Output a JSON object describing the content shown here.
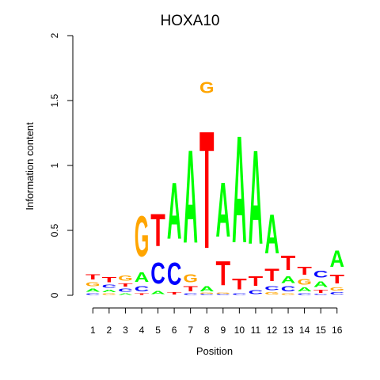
{
  "chart_data": {
    "type": "sequence-logo",
    "title": "HOXA10",
    "xlabel": "Position",
    "ylabel": "Information content",
    "ylim": [
      0,
      2
    ],
    "yticks": [
      "0",
      "0.5",
      "1",
      "1.5",
      "2"
    ],
    "positions": [
      "1",
      "2",
      "3",
      "4",
      "5",
      "6",
      "7",
      "8",
      "9",
      "10",
      "11",
      "12",
      "13",
      "14",
      "15",
      "16"
    ],
    "colors": {
      "A": "#00ff00",
      "C": "#0000ff",
      "G": "#ffa500",
      "T": "#ff0000"
    },
    "letter_stacks": [
      [
        [
          "C",
          0.02
        ],
        [
          "A",
          0.04
        ],
        [
          "G",
          0.05
        ],
        [
          "T",
          0.06
        ]
      ],
      [
        [
          "G",
          0.02
        ],
        [
          "A",
          0.03
        ],
        [
          "C",
          0.04
        ],
        [
          "T",
          0.06
        ]
      ],
      [
        [
          "A",
          0.02
        ],
        [
          "C",
          0.04
        ],
        [
          "T",
          0.04
        ],
        [
          "G",
          0.06
        ]
      ],
      [
        [
          "T",
          0.02
        ],
        [
          "C",
          0.06
        ],
        [
          "A",
          0.12
        ],
        [
          "G",
          0.5
        ]
      ],
      [
        [
          "A",
          0.04
        ],
        [
          "C",
          0.26
        ],
        [
          "T",
          0.4
        ]
      ],
      [
        [
          "T",
          0.03
        ],
        [
          "C",
          0.27
        ],
        [
          "A",
          0.7
        ]
      ],
      [
        [
          "C",
          0.02
        ],
        [
          "T",
          0.06
        ],
        [
          "G",
          0.1
        ],
        [
          "A",
          1.15
        ]
      ],
      [
        [
          "C",
          0.01
        ],
        [
          "G",
          0.01
        ],
        [
          "A",
          0.06
        ],
        [
          "T",
          1.45
        ],
        [
          "G",
          0.14
        ]
      ],
      [
        [
          "C",
          0.01
        ],
        [
          "G",
          0.01
        ],
        [
          "T",
          0.3
        ],
        [
          "A",
          0.67
        ]
      ],
      [
        [
          "C",
          0.02
        ],
        [
          "T",
          0.13
        ],
        [
          "A",
          1.32
        ]
      ],
      [
        [
          "C",
          0.05
        ],
        [
          "T",
          0.12
        ],
        [
          "A",
          1.16
        ]
      ],
      [
        [
          "G",
          0.03
        ],
        [
          "C",
          0.05
        ],
        [
          "T",
          0.15
        ],
        [
          "A",
          0.48
        ]
      ],
      [
        [
          "G",
          0.02
        ],
        [
          "C",
          0.06
        ],
        [
          "A",
          0.08
        ],
        [
          "T",
          0.18
        ]
      ],
      [
        [
          "C",
          0.02
        ],
        [
          "A",
          0.05
        ],
        [
          "G",
          0.07
        ],
        [
          "T",
          0.1
        ]
      ],
      [
        [
          "C",
          0.01
        ],
        [
          "T",
          0.04
        ],
        [
          "A",
          0.07
        ],
        [
          "C",
          0.08
        ]
      ],
      [
        [
          "C",
          0.03
        ],
        [
          "G",
          0.04
        ],
        [
          "T",
          0.11
        ],
        [
          "A",
          0.2
        ]
      ]
    ]
  }
}
